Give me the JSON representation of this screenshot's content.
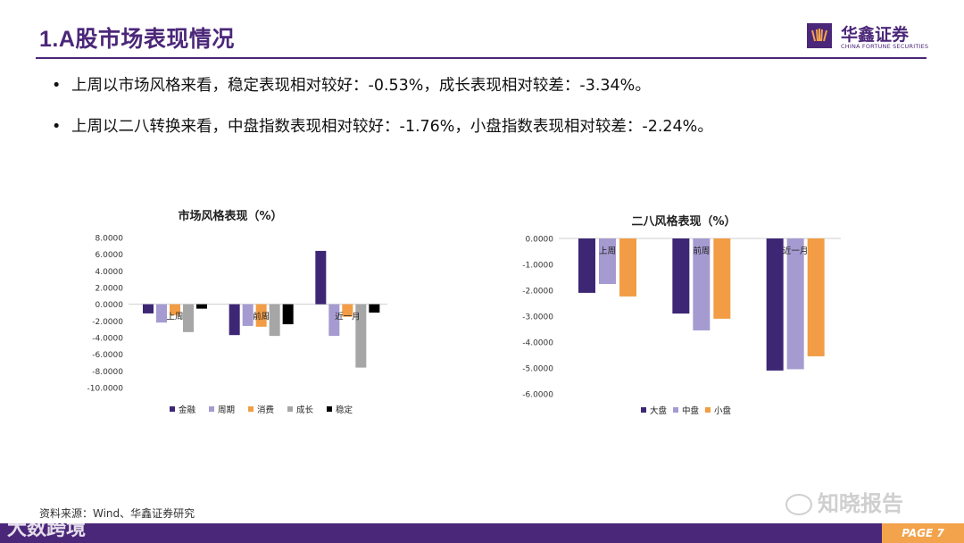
{
  "header": {
    "title": "1.A股市场表现情况",
    "logo_cn": "华鑫证券",
    "logo_en": "CHINA FORTUNE SECURITIES"
  },
  "bullets": [
    "上周以市场风格来看，稳定表现相对较好：-0.53%，成长表现相对较差：-3.34%。",
    "上周以二八转换来看，中盘指数表现相对较好：-1.76%，小盘指数表现相对较差：-2.24%。"
  ],
  "bullet_marker": "•",
  "chart_data": [
    {
      "type": "bar",
      "title": "市场风格表现（%）",
      "categories": [
        "上周",
        "前周",
        "近一月"
      ],
      "series": [
        {
          "name": "金融",
          "color": "#3d2775",
          "values": [
            -1.1,
            -3.7,
            6.4
          ]
        },
        {
          "name": "周期",
          "color": "#a59bd0",
          "values": [
            -2.2,
            -2.6,
            -3.8
          ]
        },
        {
          "name": "消费",
          "color": "#f29d45",
          "values": [
            -1.3,
            -2.7,
            -1.5
          ]
        },
        {
          "name": "成长",
          "color": "#a6a6a6",
          "values": [
            -3.34,
            -3.8,
            -7.6
          ]
        },
        {
          "name": "稳定",
          "color": "#000000",
          "values": [
            -0.53,
            -2.4,
            -1.0
          ]
        }
      ],
      "ylim": [
        -10,
        8
      ],
      "yticks": [
        "8.0000",
        "6.0000",
        "4.0000",
        "2.0000",
        "0.0000",
        "-2.0000",
        "-4.0000",
        "-6.0000",
        "-8.0000",
        "-10.0000"
      ],
      "legend": "bottom",
      "grid": false
    },
    {
      "type": "bar",
      "title": "二八风格表现（%）",
      "categories": [
        "上周",
        "前周",
        "近一月"
      ],
      "series": [
        {
          "name": "大盘",
          "color": "#3d2775",
          "values": [
            -2.1,
            -2.9,
            -5.1
          ]
        },
        {
          "name": "中盘",
          "color": "#a59bd0",
          "values": [
            -1.76,
            -3.55,
            -5.05
          ]
        },
        {
          "name": "小盘",
          "color": "#f29d45",
          "values": [
            -2.24,
            -3.1,
            -4.55
          ]
        }
      ],
      "ylim": [
        -6,
        0
      ],
      "yticks": [
        "0.0000",
        "-1.0000",
        "-2.0000",
        "-3.0000",
        "-4.0000",
        "-5.0000",
        "-6.0000"
      ],
      "legend": "bottom",
      "grid": false
    }
  ],
  "footer": {
    "source": "资料来源：Wind、华鑫证券研究",
    "page": "PAGE 7",
    "watermark_right": "知晓报告",
    "watermark_left": "大数跨境"
  }
}
